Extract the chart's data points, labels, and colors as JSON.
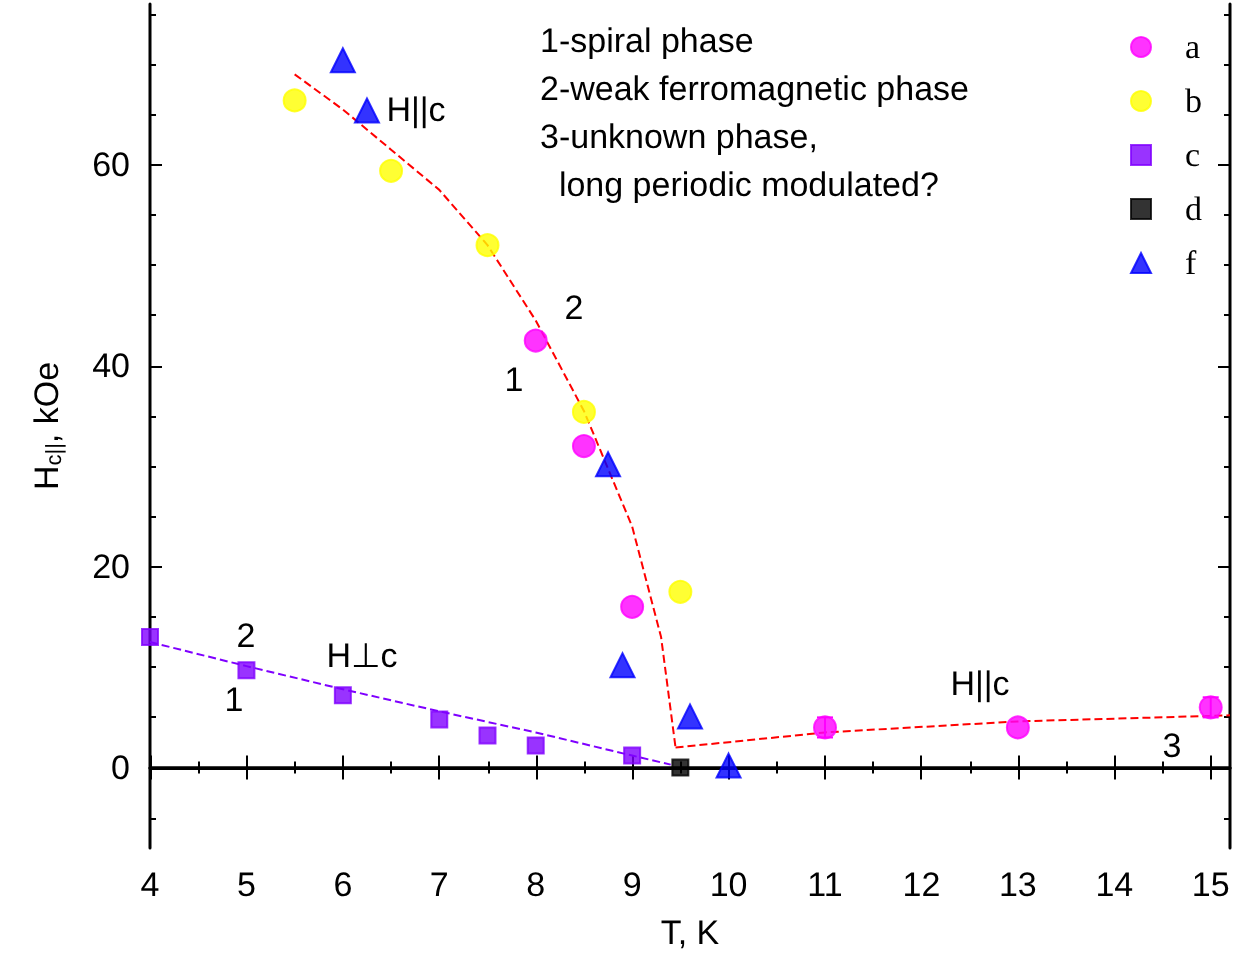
{
  "chart_data": {
    "type": "scatter",
    "xlabel": "T, K",
    "ylabel": "H$_{c||}$, kOe",
    "xlim": [
      4,
      15.2
    ],
    "xticks": [
      4,
      5,
      6,
      7,
      8,
      9,
      10,
      11,
      12,
      13,
      14,
      15
    ],
    "ylim": [
      -8,
      76
    ],
    "yticks": [
      0,
      20,
      40,
      60
    ],
    "legend": "top right",
    "ref_lines": [
      {
        "axis": "y",
        "value": 0,
        "color": "#000000"
      }
    ],
    "annotations": [
      "1-spiral phase",
      "2-weak ferromagnetic phase",
      "3-unknown phase,",
      "  long periodic modulated?",
      "H||c",
      "2",
      "1",
      "H⊥c",
      "2",
      "1",
      "H||c",
      "3"
    ],
    "series": [
      {
        "name": "a",
        "color": "#ff00ff",
        "marker": "circle",
        "x": [
          8,
          8.5,
          9,
          11,
          13,
          15
        ],
        "values": [
          42.5,
          32,
          16,
          4,
          4,
          6
        ],
        "errors": [
          null,
          null,
          null,
          1,
          null,
          1
        ]
      },
      {
        "name": "b",
        "color": "#ffff00",
        "marker": "circle",
        "x": [
          5.5,
          6.5,
          7.5,
          8.5,
          9.5
        ],
        "values": [
          66.4,
          59.4,
          52,
          35.4,
          17.5
        ]
      },
      {
        "name": "c",
        "color": "#7f00ff",
        "marker": "square",
        "x": [
          4,
          5,
          6,
          7,
          7.5,
          8,
          9
        ],
        "values": [
          13,
          9.7,
          7.2,
          4.8,
          3.2,
          2.2,
          1.2
        ]
      },
      {
        "name": "d",
        "color": "#000000",
        "marker": "square",
        "x": [
          9.5
        ],
        "values": [
          0
        ]
      },
      {
        "name": "f",
        "color": "#0000ff",
        "marker": "triangle",
        "x": [
          6,
          6.25,
          8.75,
          8.9,
          9.6,
          10
        ],
        "values": [
          70.4,
          65.4,
          30.2,
          10.2,
          5.1,
          0.2
        ]
      },
      {
        "type": "line",
        "color": "#ff0000",
        "marker": "none",
        "line_style": "dashed",
        "x": [
          5.5,
          6,
          6.5,
          7,
          7.5,
          8,
          8.5,
          9,
          9.3,
          9.45
        ],
        "values": [
          69,
          65.5,
          61.5,
          57.5,
          52,
          44.5,
          35.5,
          24,
          13,
          2
        ]
      },
      {
        "type": "line",
        "color": "#ff0000",
        "marker": "none",
        "line_style": "dashed",
        "x": [
          9.45,
          11,
          13,
          15.2
        ],
        "values": [
          2,
          3.5,
          4.6,
          5.2
        ]
      },
      {
        "type": "line",
        "color": "#7f00ff",
        "marker": "none",
        "line_style": "dashed",
        "x": [
          4,
          5,
          6,
          7,
          8,
          9,
          9.4
        ],
        "values": [
          12.5,
          10.1,
          7.8,
          5.6,
          3.5,
          1.2,
          0.3
        ]
      }
    ]
  }
}
